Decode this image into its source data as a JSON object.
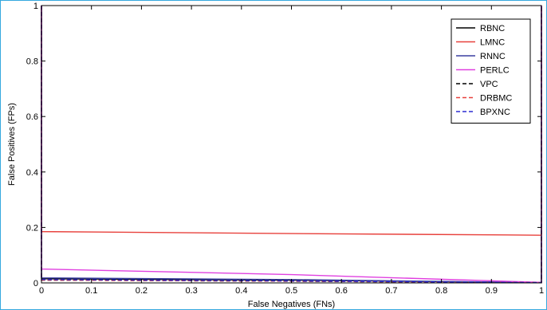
{
  "chart_data": {
    "type": "line",
    "title": "",
    "xlabel": "False Negatives (FNs)",
    "ylabel": "False Positives (FPs)",
    "xlim": [
      0,
      1
    ],
    "ylim": [
      0,
      1
    ],
    "xticks": [
      0,
      0.1,
      0.2,
      0.3,
      0.4,
      0.5,
      0.6,
      0.7,
      0.8,
      0.9,
      1
    ],
    "xtick_labels": [
      "0",
      "0.1",
      "0.2",
      "0.3",
      "0.4",
      "0.5",
      "0.6",
      "0.7",
      "0.8",
      "0.9",
      "1"
    ],
    "yticks": [
      0,
      0.2,
      0.4,
      0.6,
      0.8,
      1
    ],
    "ytick_labels": [
      "0",
      "0.2",
      "0.4",
      "0.6",
      "0.8",
      "1"
    ],
    "grid": false,
    "legend_position": "top-right",
    "series": [
      {
        "name": "RBNC",
        "color": "#000000",
        "dash": "solid",
        "x": [
          0,
          0,
          0.5,
          1,
          1
        ],
        "y": [
          1,
          0.015,
          0.01,
          0.001,
          1
        ]
      },
      {
        "name": "LMNC",
        "color": "#e8413c",
        "dash": "solid",
        "x": [
          0,
          0,
          0.5,
          1,
          1
        ],
        "y": [
          1,
          0.185,
          0.178,
          0.172,
          1
        ]
      },
      {
        "name": "RNNC",
        "color": "#3a3fa0",
        "dash": "solid",
        "x": [
          0,
          0,
          0.5,
          1,
          1
        ],
        "y": [
          1,
          0.018,
          0.012,
          0.001,
          1
        ]
      },
      {
        "name": "PERLC",
        "color": "#e040e0",
        "dash": "solid",
        "x": [
          0,
          0,
          0.5,
          1,
          1
        ],
        "y": [
          1,
          0.05,
          0.03,
          0.002,
          1
        ]
      },
      {
        "name": "VPC",
        "color": "#000000",
        "dash": "dashed",
        "x": [
          0,
          0,
          0.5,
          1,
          1
        ],
        "y": [
          1,
          0.01,
          0.006,
          0.001,
          1
        ]
      },
      {
        "name": "DRBMC",
        "color": "#e8413c",
        "dash": "dashed",
        "x": [
          0,
          0,
          0.5,
          1,
          1
        ],
        "y": [
          1,
          0.01,
          0.006,
          0.001,
          1
        ]
      },
      {
        "name": "BPXNC",
        "color": "#2a2ad0",
        "dash": "dashed",
        "x": [
          0,
          0,
          0.5,
          1,
          1
        ],
        "y": [
          1,
          0.012,
          0.007,
          0.001,
          1
        ]
      }
    ]
  }
}
